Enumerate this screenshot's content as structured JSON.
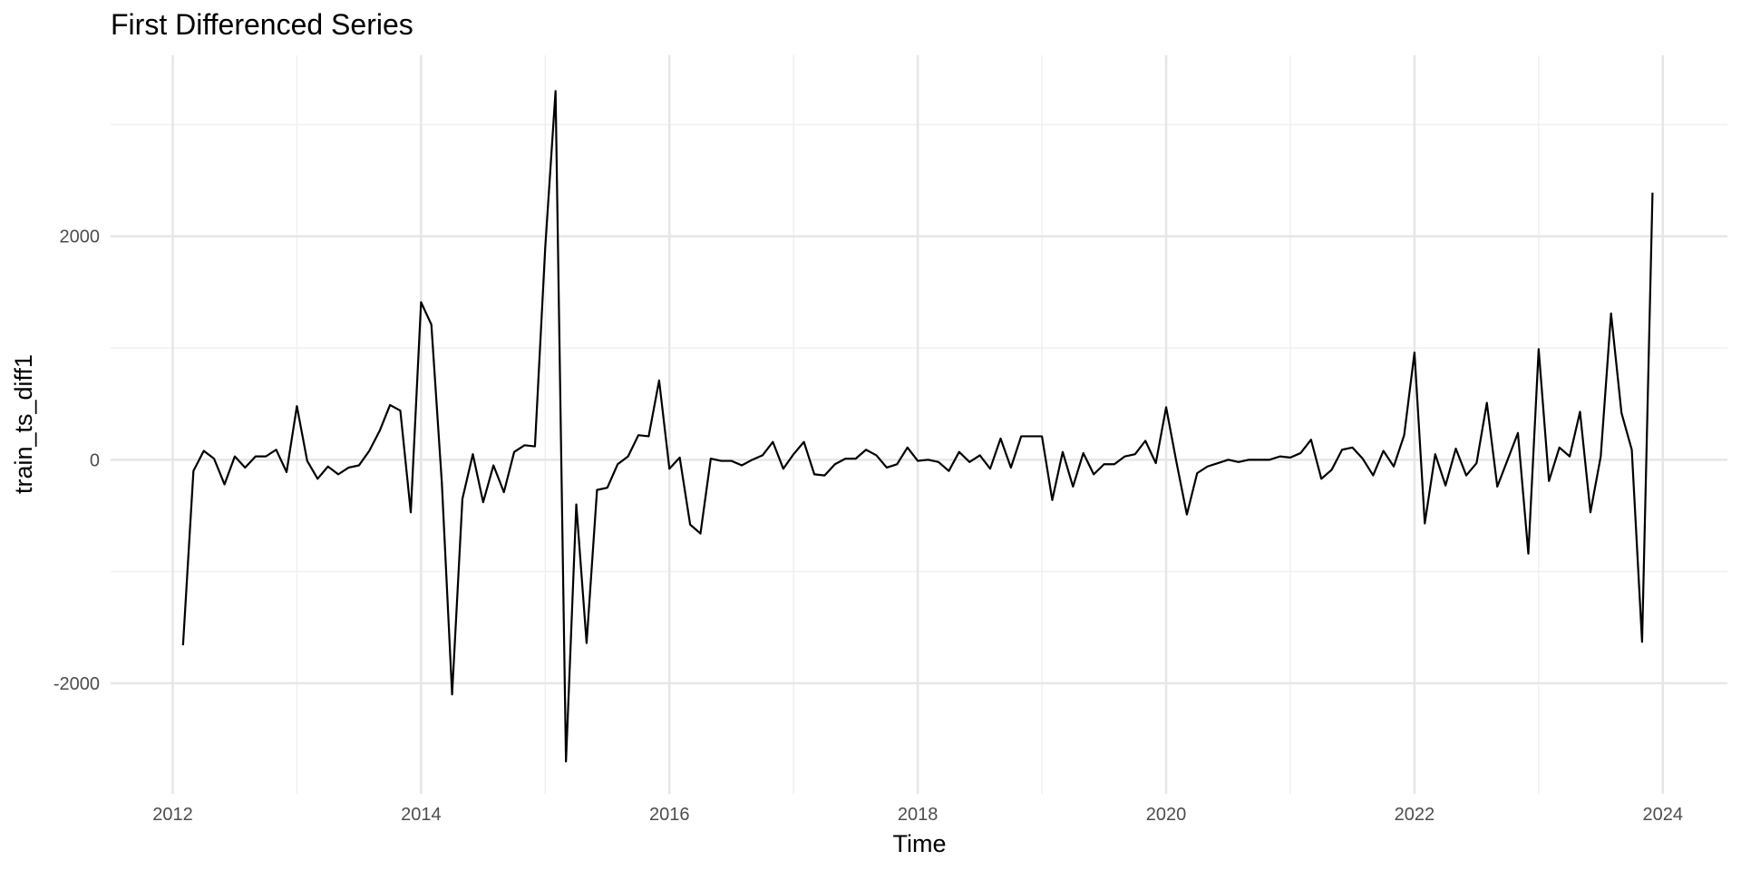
{
  "chart_data": {
    "type": "line",
    "title": "First Differenced Series",
    "xlabel": "Time",
    "ylabel": "train_ts_diff1",
    "x": [
      2012.083,
      2012.167,
      2012.25,
      2012.333,
      2012.417,
      2012.5,
      2012.583,
      2012.667,
      2012.75,
      2012.833,
      2012.917,
      2013,
      2013.083,
      2013.167,
      2013.25,
      2013.333,
      2013.417,
      2013.5,
      2013.583,
      2013.667,
      2013.75,
      2013.833,
      2013.917,
      2014,
      2014.083,
      2014.167,
      2014.25,
      2014.333,
      2014.417,
      2014.5,
      2014.583,
      2014.667,
      2014.75,
      2014.833,
      2014.917,
      2015,
      2015.083,
      2015.167,
      2015.25,
      2015.333,
      2015.417,
      2015.5,
      2015.583,
      2015.667,
      2015.75,
      2015.833,
      2015.917,
      2016,
      2016.083,
      2016.167,
      2016.25,
      2016.333,
      2016.417,
      2016.5,
      2016.583,
      2016.667,
      2016.75,
      2016.833,
      2016.917,
      2017,
      2017.083,
      2017.167,
      2017.25,
      2017.333,
      2017.417,
      2017.5,
      2017.583,
      2017.667,
      2017.75,
      2017.833,
      2017.917,
      2018,
      2018.083,
      2018.167,
      2018.25,
      2018.333,
      2018.417,
      2018.5,
      2018.583,
      2018.667,
      2018.75,
      2018.833,
      2018.917,
      2019,
      2019.083,
      2019.167,
      2019.25,
      2019.333,
      2019.417,
      2019.5,
      2019.583,
      2019.667,
      2019.75,
      2019.833,
      2019.917,
      2020,
      2020.083,
      2020.167,
      2020.25,
      2020.333,
      2020.417,
      2020.5,
      2020.583,
      2020.667,
      2020.75,
      2020.833,
      2020.917,
      2021,
      2021.083,
      2021.167,
      2021.25,
      2021.333,
      2021.417,
      2021.5,
      2021.583,
      2021.667,
      2021.75,
      2021.833,
      2021.917,
      2022,
      2022.083,
      2022.167,
      2022.25,
      2022.333,
      2022.417,
      2022.5,
      2022.583,
      2022.667,
      2022.75,
      2022.833,
      2022.917,
      2023,
      2023.083,
      2023.167,
      2023.25,
      2023.333,
      2023.417,
      2023.5,
      2023.583,
      2023.667,
      2023.75,
      2023.833,
      2023.917
    ],
    "series": [
      {
        "name": "train_ts_diff1",
        "color": "#000000",
        "values": [
          -1660,
          -100,
          80,
          10,
          -220,
          30,
          -70,
          30,
          30,
          90,
          -110,
          480,
          -10,
          -170,
          -60,
          -130,
          -70,
          -50,
          80,
          260,
          490,
          440,
          -470,
          1410,
          1210,
          -200,
          -2100,
          -350,
          50,
          -380,
          -50,
          -290,
          70,
          130,
          120,
          1900,
          3300,
          -2700,
          -400,
          -1640,
          -270,
          -250,
          -40,
          30,
          220,
          210,
          710,
          -80,
          20,
          -580,
          -660,
          10,
          -10,
          -10,
          -50,
          0,
          40,
          160,
          -80,
          50,
          160,
          -130,
          -140,
          -40,
          10,
          10,
          90,
          40,
          -70,
          -40,
          110,
          -10,
          0,
          -20,
          -100,
          70,
          -20,
          40,
          -80,
          190,
          -70,
          210,
          210,
          210,
          -360,
          70,
          -240,
          60,
          -130,
          -40,
          -40,
          30,
          50,
          170,
          -30,
          470,
          -20,
          -490,
          -120,
          -60,
          -30,
          0,
          -20,
          0,
          0,
          0,
          30,
          20,
          60,
          180,
          -170,
          -90,
          90,
          110,
          10,
          -140,
          80,
          -60,
          220,
          960,
          -570,
          50,
          -230,
          100,
          -140,
          -30,
          510,
          -240,
          0,
          240,
          -840,
          990,
          -190,
          110,
          30,
          430,
          -470,
          30,
          1310,
          420,
          90,
          -1630,
          2390
        ]
      }
    ],
    "xlim": [
      2011.5,
      2024.52
    ],
    "ylim": [
      -2990,
      3620
    ],
    "xticks": [
      2012,
      2014,
      2016,
      2018,
      2020,
      2022,
      2024
    ],
    "yticks": [
      -2000,
      0,
      2000
    ],
    "minor_xticks": [
      2013,
      2015,
      2017,
      2019,
      2021,
      2023
    ],
    "minor_yticks": [
      -1000,
      1000,
      3000
    ],
    "grid": true
  }
}
